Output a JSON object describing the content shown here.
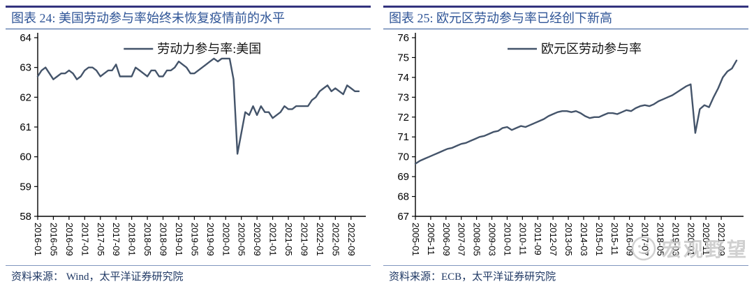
{
  "panels": [
    {
      "source": "资料来源： Wind，太平洋证券研究院"
    },
    {
      "source": "资料来源：ECB，太平洋证券研究院"
    }
  ],
  "watermark": {
    "text": "宏观野望",
    "icon": "smiley-face-icon"
  },
  "colors": {
    "top_rule": "#33337E",
    "title_blue": "#2F5597",
    "line": "#44546A",
    "source_navy": "#1F3864",
    "footer_rule": "#8096BE",
    "watermark_gray": "#C8C8C8"
  },
  "chart_data": [
    {
      "type": "line",
      "title": "图表 24: 美国劳动参与率始终未恢复疫情前的水平",
      "legend": "劳动力参与率:美国",
      "x_first": "2016-01",
      "x_last": "2022-11",
      "frequency_months": 1,
      "tick_every_months": 4,
      "x_tick_labels": [
        "2016-01",
        "2016-05",
        "2016-09",
        "2017-01",
        "2017-05",
        "2017-09",
        "2018-01",
        "2018-05",
        "2018-09",
        "2019-01",
        "2019-05",
        "2019-09",
        "2020-01",
        "2020-05",
        "2020-09",
        "2021-01",
        "2021-05",
        "2021-09",
        "2022-01",
        "2022-05",
        "2022-09"
      ],
      "ylim": [
        58,
        64
      ],
      "y_tick_step": 1,
      "y_ticks": [
        58,
        59,
        60,
        61,
        62,
        63,
        64
      ],
      "grid": false,
      "legend_position": "top-center",
      "line_color": "#44546A",
      "values": [
        62.7,
        62.9,
        63.0,
        62.8,
        62.6,
        62.7,
        62.8,
        62.8,
        62.9,
        62.8,
        62.6,
        62.7,
        62.9,
        63.0,
        63.0,
        62.9,
        62.7,
        62.8,
        62.9,
        62.9,
        63.1,
        62.7,
        62.7,
        62.7,
        62.7,
        63.0,
        62.9,
        62.8,
        62.7,
        62.9,
        62.9,
        62.7,
        62.7,
        62.9,
        62.9,
        63.0,
        63.2,
        63.1,
        63.0,
        62.8,
        62.8,
        62.9,
        63.0,
        63.1,
        63.2,
        63.3,
        63.2,
        63.3,
        63.3,
        63.3,
        62.6,
        60.1,
        60.8,
        61.5,
        61.4,
        61.7,
        61.4,
        61.7,
        61.5,
        61.5,
        61.3,
        61.4,
        61.5,
        61.7,
        61.6,
        61.6,
        61.7,
        61.7,
        61.7,
        61.7,
        61.9,
        62.0,
        62.2,
        62.3,
        62.4,
        62.2,
        62.3,
        62.2,
        62.1,
        62.4,
        62.3,
        62.2,
        62.2
      ]
    },
    {
      "type": "line",
      "title": "图表 25: 欧元区劳动参与率已经创下新高",
      "legend": "欧元区劳动参与率",
      "x_first": "2005-01",
      "x_last": "2022-07",
      "frequency_months": 3,
      "tick_every_months": 10,
      "x_tick_labels": [
        "2005-01",
        "2005-11",
        "2006-09",
        "2007-07",
        "2008-05",
        "2009-03",
        "2010-01",
        "2010-11",
        "2011-09",
        "2012-07",
        "2013-05",
        "2014-03",
        "2015-01",
        "2015-11",
        "2016-09",
        "2017-07",
        "2018-05",
        "2019-03",
        "2020-01",
        "2020-11",
        "2021-09"
      ],
      "ylim": [
        67,
        76
      ],
      "y_tick_step": 1,
      "y_ticks": [
        67,
        68,
        69,
        70,
        71,
        72,
        73,
        74,
        75,
        76
      ],
      "grid": false,
      "legend_position": "top-center",
      "line_color": "#44546A",
      "values": [
        69.65,
        69.8,
        69.9,
        70.0,
        70.1,
        70.2,
        70.3,
        70.4,
        70.45,
        70.55,
        70.65,
        70.7,
        70.8,
        70.9,
        71.0,
        71.05,
        71.15,
        71.25,
        71.3,
        71.45,
        71.5,
        71.35,
        71.45,
        71.55,
        71.5,
        71.6,
        71.7,
        71.8,
        71.9,
        72.05,
        72.15,
        72.25,
        72.3,
        72.3,
        72.25,
        72.3,
        72.2,
        72.05,
        71.95,
        72.0,
        72.0,
        72.1,
        72.2,
        72.2,
        72.15,
        72.25,
        72.35,
        72.3,
        72.45,
        72.55,
        72.6,
        72.55,
        72.65,
        72.8,
        72.9,
        73.0,
        73.1,
        73.25,
        73.4,
        73.55,
        73.65,
        71.2,
        72.4,
        72.6,
        72.5,
        73.0,
        73.45,
        74.0,
        74.3,
        74.45,
        74.85
      ]
    }
  ]
}
